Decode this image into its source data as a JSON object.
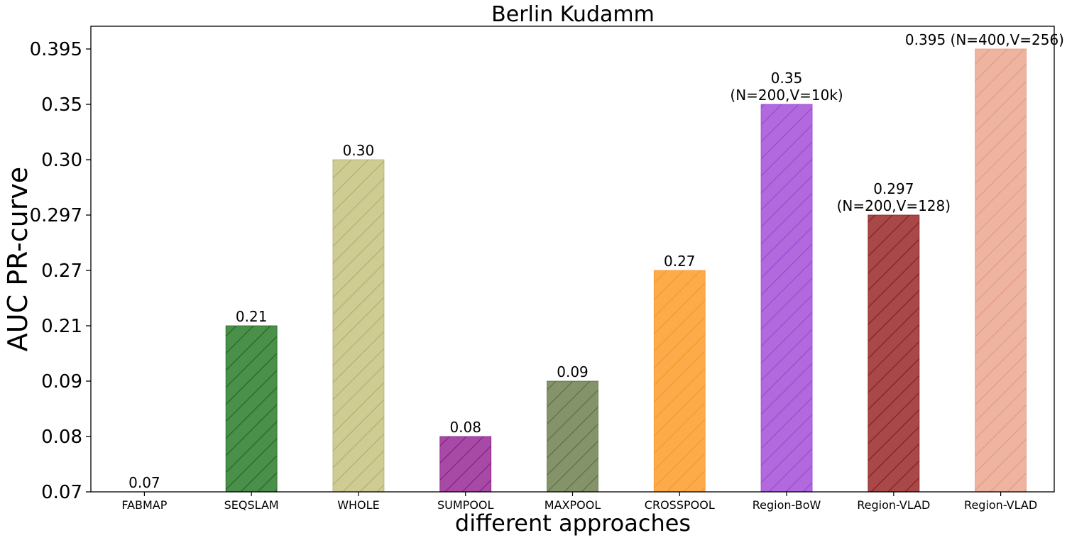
{
  "chart_data": {
    "type": "bar",
    "title": "Berlin Kudamm",
    "xlabel": "different approaches",
    "ylabel": "AUC PR-curve",
    "y_ticks": [
      "0.07",
      "0.08",
      "0.09",
      "0.21",
      "0.27",
      "0.297",
      "0.30",
      "0.35",
      "0.395"
    ],
    "y_scale": "categorical (equally spaced tick labels)",
    "grid": false,
    "legend": "none",
    "bars": [
      {
        "category": "FABMAP",
        "value": 0.07,
        "label": [
          "0.07"
        ],
        "color": "#ffffff",
        "hatch": "none"
      },
      {
        "category": "SEQSLAM",
        "value": 0.21,
        "label": [
          "0.21"
        ],
        "color": "#4a8f4a",
        "hatch": "#1f6b1f"
      },
      {
        "category": "WHOLE",
        "value": 0.3,
        "label": [
          "0.30"
        ],
        "color": "#cfcc93",
        "hatch": "#b3af6a"
      },
      {
        "category": "SUMPOOL",
        "value": 0.08,
        "label": [
          "0.08"
        ],
        "color": "#a64aa6",
        "hatch": "#8a1f8a"
      },
      {
        "category": "MAXPOOL",
        "value": 0.09,
        "label": [
          "0.09"
        ],
        "color": "#84936a",
        "hatch": "#5f7046"
      },
      {
        "category": "CROSSPOOL",
        "value": 0.27,
        "label": [
          "0.27"
        ],
        "color": "#fdaa4a",
        "hatch": "#f39a2a"
      },
      {
        "category": "Region-BoW",
        "value": 0.35,
        "label": [
          "0.35",
          "(N=200,V=10k)"
        ],
        "color": "#b169dd",
        "hatch": "#9a4ad0"
      },
      {
        "category": "Region-VLAD",
        "value": 0.297,
        "label": [
          "0.297",
          "(N=200,V=128)"
        ],
        "color": "#a84848",
        "hatch": "#8a1f1f"
      },
      {
        "category": "Region-VLAD",
        "value": 0.395,
        "label": [
          "0.395 (N=400,V=256)"
        ],
        "color": "#efb49f",
        "hatch": "#e39a84"
      }
    ]
  }
}
